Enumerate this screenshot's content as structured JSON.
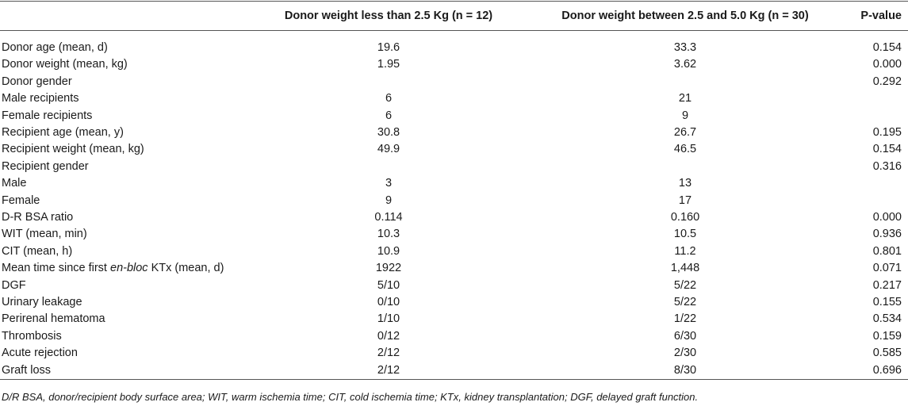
{
  "table": {
    "header": [
      null,
      "Donor weight less than 2.5 Kg (n = 12)",
      "Donor weight between 2.5 and 5.0 Kg (n = 30)",
      "P-value"
    ],
    "rows": [
      [
        "Donor age (mean, d)",
        "19.6",
        "33.3",
        "0.154"
      ],
      [
        "Donor weight (mean, kg)",
        "1.95",
        "3.62",
        "0.000"
      ],
      [
        "Donor gender",
        null,
        null,
        "0.292"
      ],
      [
        "Male recipients",
        "6",
        "21",
        null
      ],
      [
        "Female recipients",
        "6",
        "9",
        null
      ],
      [
        "Recipient age (mean, y)",
        "30.8",
        "26.7",
        "0.195"
      ],
      [
        "Recipient weight (mean, kg)",
        "49.9",
        "46.5",
        "0.154"
      ],
      [
        "Recipient gender",
        null,
        null,
        "0.316"
      ],
      [
        "Male",
        "3",
        "13",
        null
      ],
      [
        "Female",
        "9",
        "17",
        null
      ],
      [
        "D-R BSA ratio",
        "0.114",
        "0.160",
        "0.000"
      ],
      [
        "WIT (mean, min)",
        "10.3",
        "10.5",
        "0.936"
      ],
      [
        "CIT (mean, h)",
        "10.9",
        "11.2",
        "0.801"
      ],
      [
        [
          "Mean time since first ",
          "en-bloc",
          " KTx (mean, d)"
        ],
        "1922",
        "1,448",
        "0.071"
      ],
      [
        "DGF",
        "5/10",
        "5/22",
        "0.217"
      ],
      [
        "Urinary leakage",
        "0/10",
        "5/22",
        "0.155"
      ],
      [
        "Perirenal hematoma",
        "1/10",
        "1/22",
        "0.534"
      ],
      [
        "Thrombosis",
        "0/12",
        "6/30",
        "0.159"
      ],
      [
        "Acute rejection",
        "2/12",
        "2/30",
        "0.585"
      ],
      [
        "Graft loss",
        "2/12",
        "8/30",
        "0.696"
      ]
    ]
  },
  "footnote": "D/R BSA, donor/recipient body surface area; WIT, warm ischemia time; CIT, cold ischemia time; KTx, kidney transplantation; DGF, delayed graft function."
}
